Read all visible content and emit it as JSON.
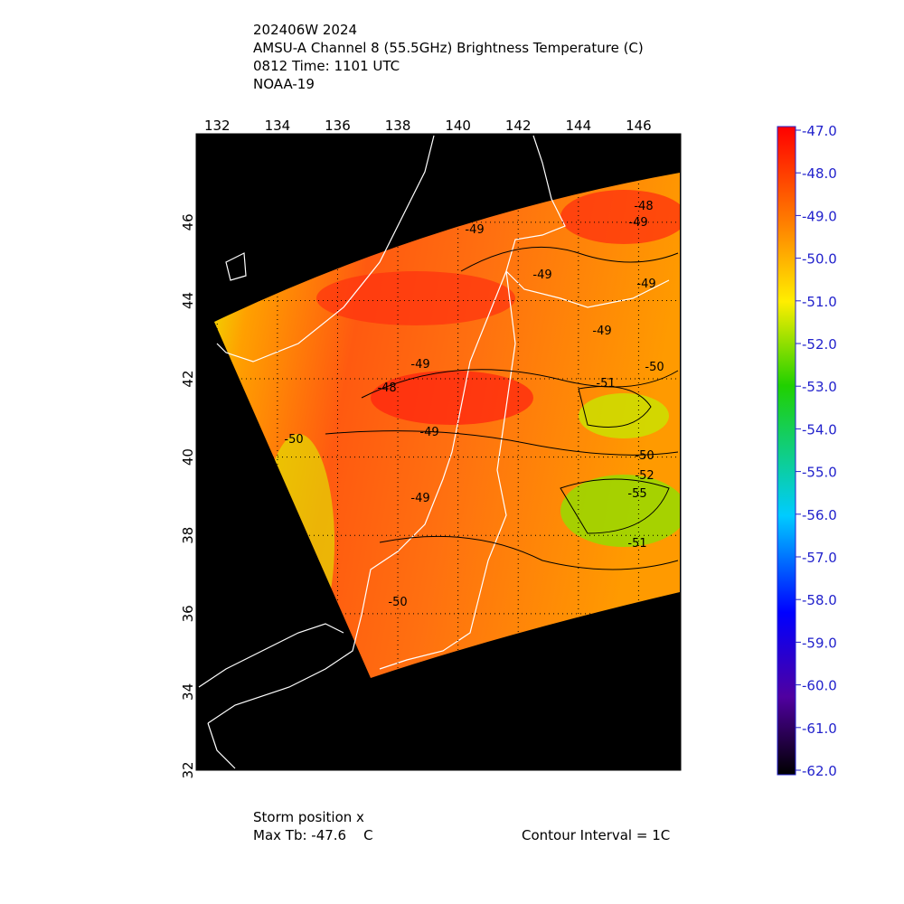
{
  "header": {
    "lines": [
      "202406W 2024",
      "AMSU-A Channel 8 (55.5GHz) Brightness Temperature (C)",
      "0812 Time: 1101 UTC",
      "NOAA-19"
    ]
  },
  "map": {
    "lon_lim": [
      131.3,
      147.4
    ],
    "lat_lim": [
      32,
      48.26
    ],
    "lon_ticks": [
      132,
      134,
      136,
      138,
      140,
      142,
      144,
      146
    ],
    "lat_ticks": [
      32,
      34,
      36,
      38,
      40,
      42,
      44,
      46
    ],
    "contour_labels": [
      "-48",
      "-49",
      "-49",
      "-49",
      "-49",
      "-49",
      "-49",
      "-50",
      "-48",
      "-51",
      "-49",
      "-50",
      "-50",
      "-52",
      "-55",
      "-49",
      "-51",
      "-50"
    ]
  },
  "colorbar": {
    "lim": [
      -62,
      -47
    ],
    "ticks": [
      {
        "value": -47,
        "label": "-47.0"
      },
      {
        "value": -48,
        "label": "-48.0"
      },
      {
        "value": -49,
        "label": "-49.0"
      },
      {
        "value": -50,
        "label": "-50.0"
      },
      {
        "value": -51,
        "label": "-51.0"
      },
      {
        "value": -52,
        "label": "-52.0"
      },
      {
        "value": -53,
        "label": "-53.0"
      },
      {
        "value": -54,
        "label": "-54.0"
      },
      {
        "value": -55,
        "label": "-55.0"
      },
      {
        "value": -56,
        "label": "-56.0"
      },
      {
        "value": -57,
        "label": "-57.0"
      },
      {
        "value": -58,
        "label": "-58.0"
      },
      {
        "value": -59,
        "label": "-59.0"
      },
      {
        "value": -60,
        "label": "-60.0"
      },
      {
        "value": -61,
        "label": "-61.0"
      },
      {
        "value": -62,
        "label": "-62.0"
      }
    ]
  },
  "footer": {
    "storm_position": "Storm position x",
    "max_tb": "Max Tb: -47.6    C",
    "contour_interval": "Contour Interval = 1C"
  }
}
